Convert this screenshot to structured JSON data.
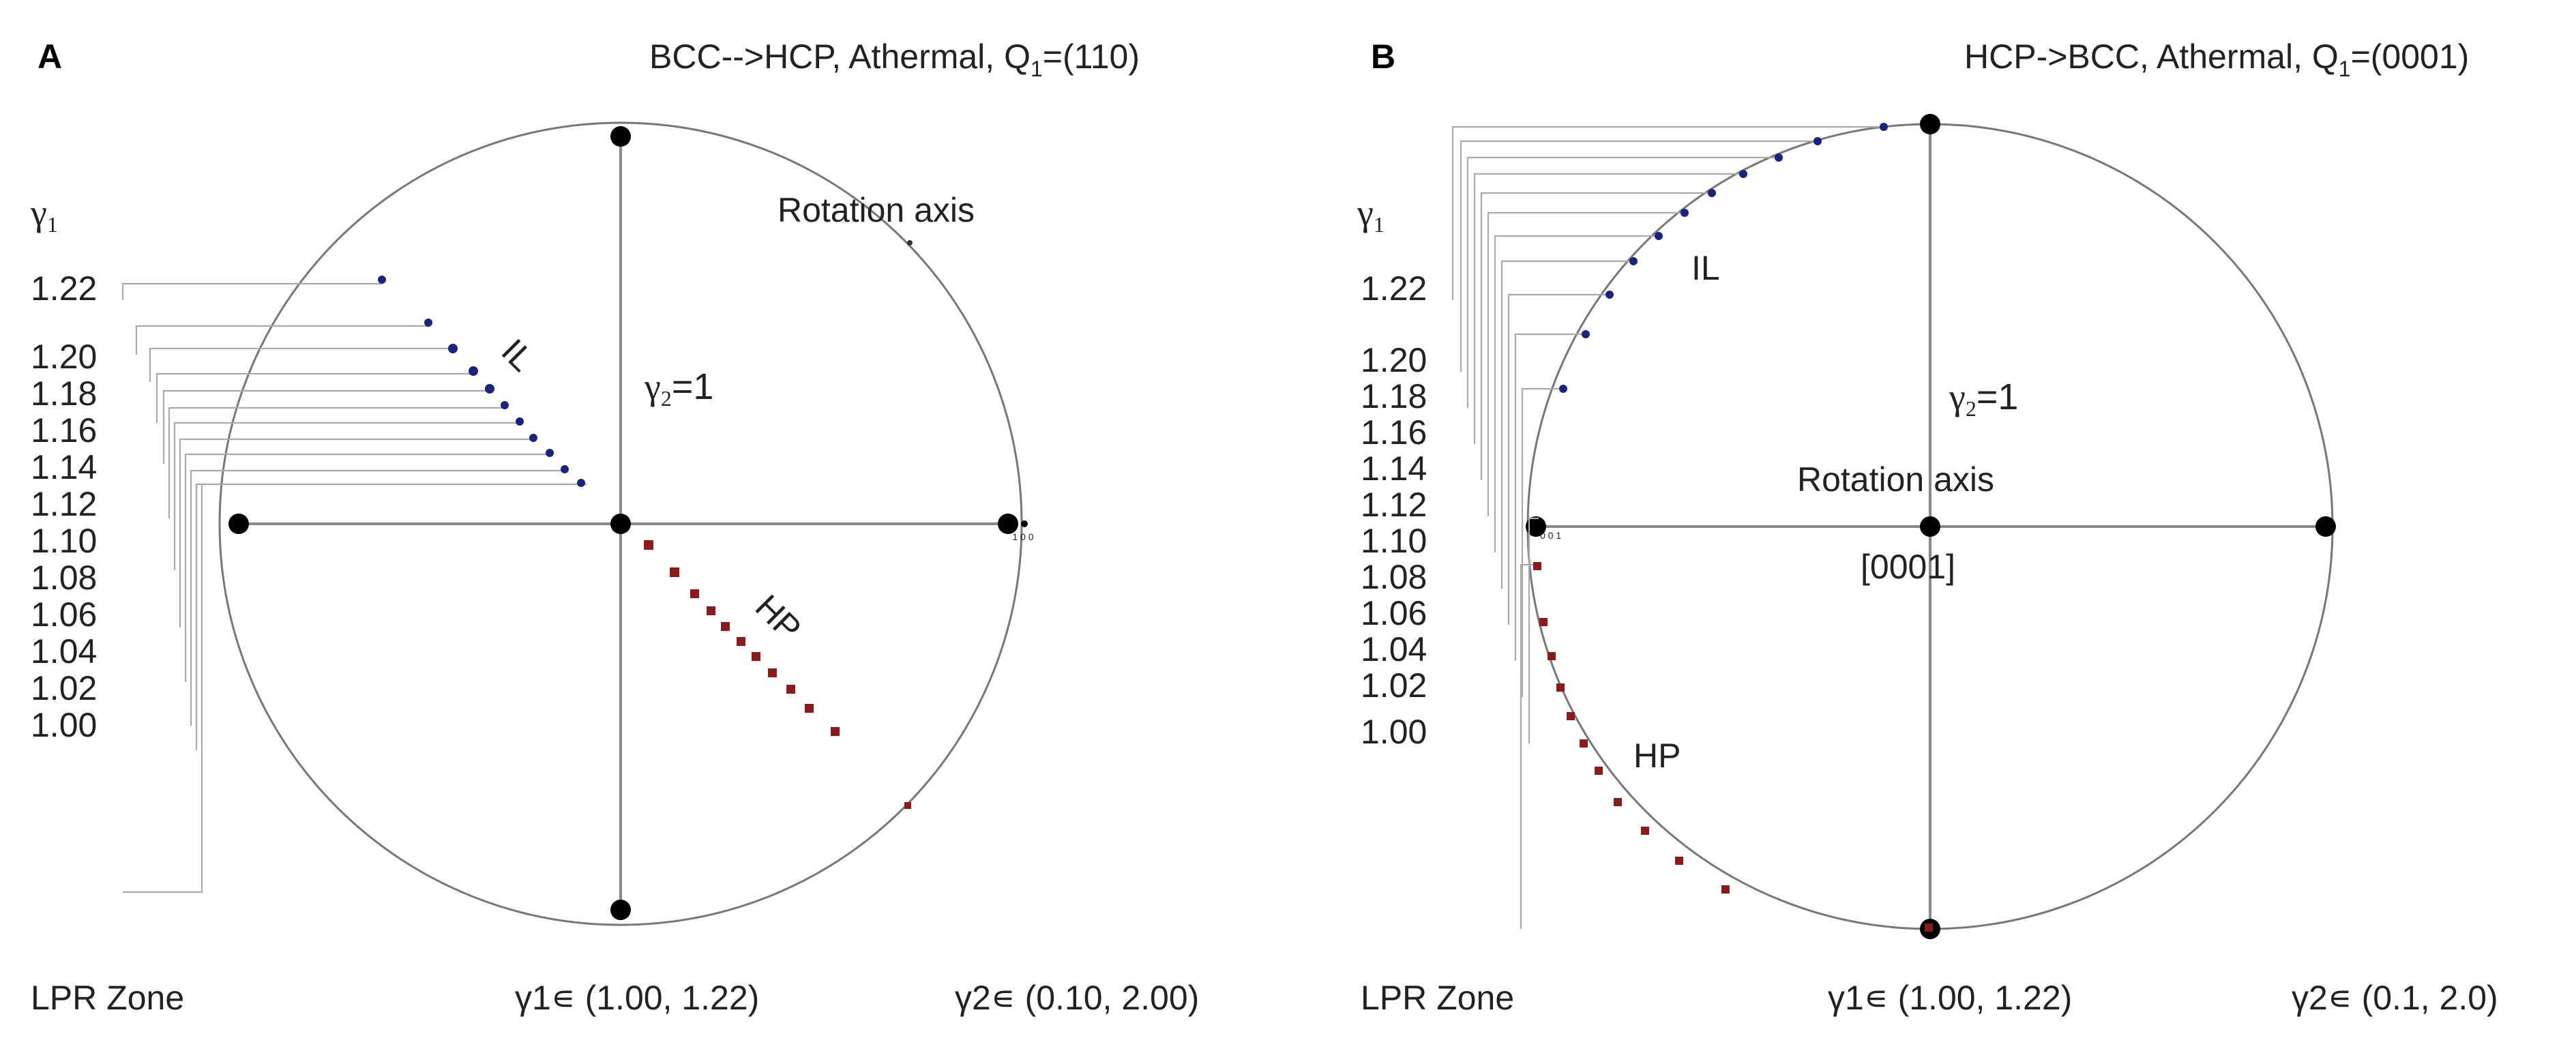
{
  "panels": [
    {
      "id": "A",
      "letter": "A",
      "title_main": "BCC-->HCP, Athermal, Q",
      "title_sub": "1",
      "title_tail": "=(110)",
      "gamma1_label": "γ",
      "gamma1_sub": "1",
      "y_ticks": [
        "1.22",
        "1.20",
        "1.18",
        "1.16",
        "1.14",
        "1.12",
        "1.10",
        "1.08",
        "1.06",
        "1.04",
        "1.02",
        "1.00"
      ],
      "gamma2_label": "γ",
      "gamma2_sub": "2",
      "gamma2_value": "=1",
      "rotation_axis_label": "Rotation axis",
      "il_label": "IL",
      "hp_label": "HP",
      "axis_tick_label": "1 0 0",
      "footer_zone": "LPR Zone",
      "footer_gamma1": "γ1∊ (1.00, 1.22)",
      "footer_gamma2": "γ2∊ (0.10, 2.00)",
      "il_color": "#1a237e",
      "hp_color": "#8b1a1a"
    },
    {
      "id": "B",
      "letter": "B",
      "title_main": "HCP->BCC, Athermal, Q",
      "title_sub": "1",
      "title_tail": "=(0001)",
      "gamma1_label": "γ",
      "gamma1_sub": "1",
      "y_ticks": [
        "1.22",
        "1.20",
        "1.18",
        "1.16",
        "1.14",
        "1.12",
        "1.10",
        "1.08",
        "1.06",
        "1.04",
        "1.02",
        "1.00"
      ],
      "gamma2_label": "γ",
      "gamma2_sub": "2",
      "gamma2_value": "=1",
      "rotation_axis_label": "Rotation axis",
      "center_label": "[0001]",
      "il_label": "IL",
      "hp_label": "HP",
      "axis_tick_label": "0 0 1",
      "footer_zone": "LPR Zone",
      "footer_gamma1": "γ1∊ (1.00, 1.22)",
      "footer_gamma2": "γ2∊ (0.1, 2.0)",
      "il_color": "#1a237e",
      "hp_color": "#8b1a1a"
    }
  ]
}
